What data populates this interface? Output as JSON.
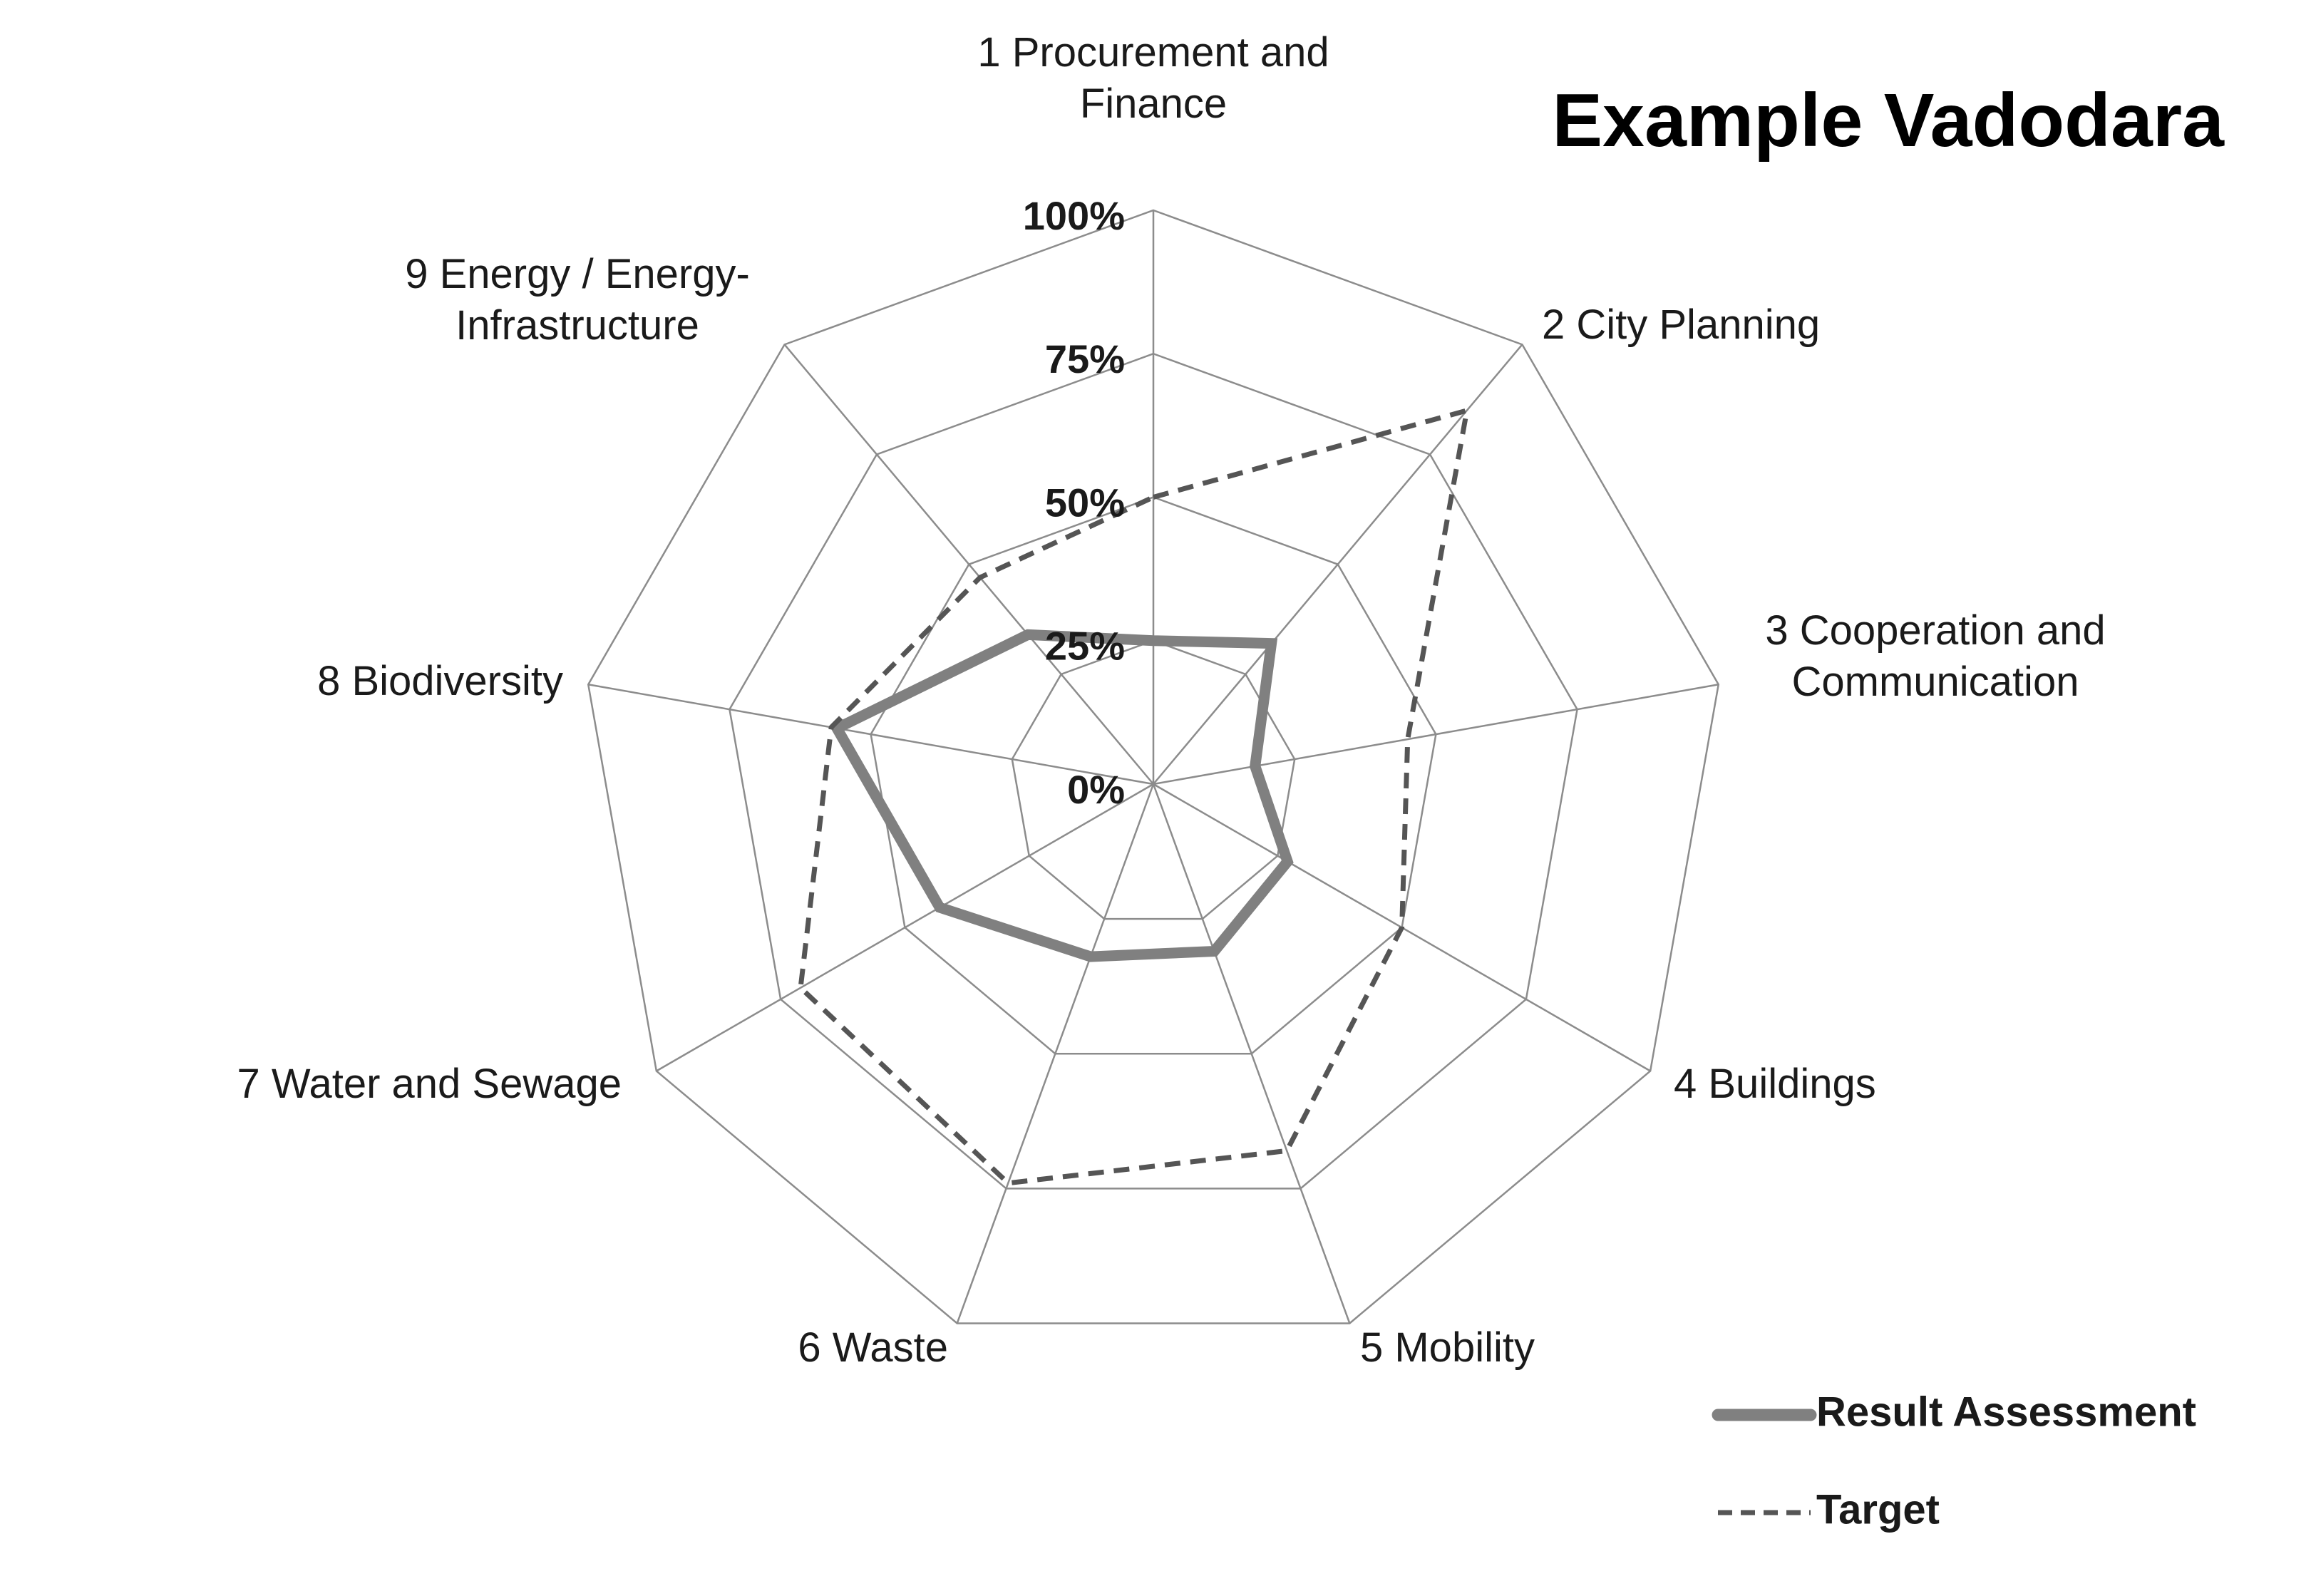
{
  "chart_data": {
    "type": "radar",
    "title": "Example Vadodara",
    "categories": [
      [
        "1 Procurement and",
        "Finance"
      ],
      [
        "2 City Planning"
      ],
      [
        "3 Cooperation and",
        "Communication"
      ],
      [
        "4 Buildings"
      ],
      [
        "5 Mobility"
      ],
      [
        "6 Waste"
      ],
      [
        "7 Water and Sewage"
      ],
      [
        "8 Biodiversity"
      ],
      [
        "9 Energy / Energy-",
        "Infrastructure"
      ]
    ],
    "r_ticks": [
      "0%",
      "25%",
      "50%",
      "75%",
      "100%"
    ],
    "r_range": [
      0,
      100
    ],
    "grid": true,
    "legend": "bottom-right",
    "series": [
      {
        "name": "Result Assessment",
        "values": [
          25,
          32,
          18,
          27,
          31,
          32,
          43,
          56,
          34
        ],
        "color": "#808080",
        "style": "solid"
      },
      {
        "name": "Target",
        "values": [
          50,
          85,
          45,
          50,
          68,
          74,
          71,
          57,
          47
        ],
        "color": "#555555",
        "style": "dashed"
      }
    ]
  }
}
